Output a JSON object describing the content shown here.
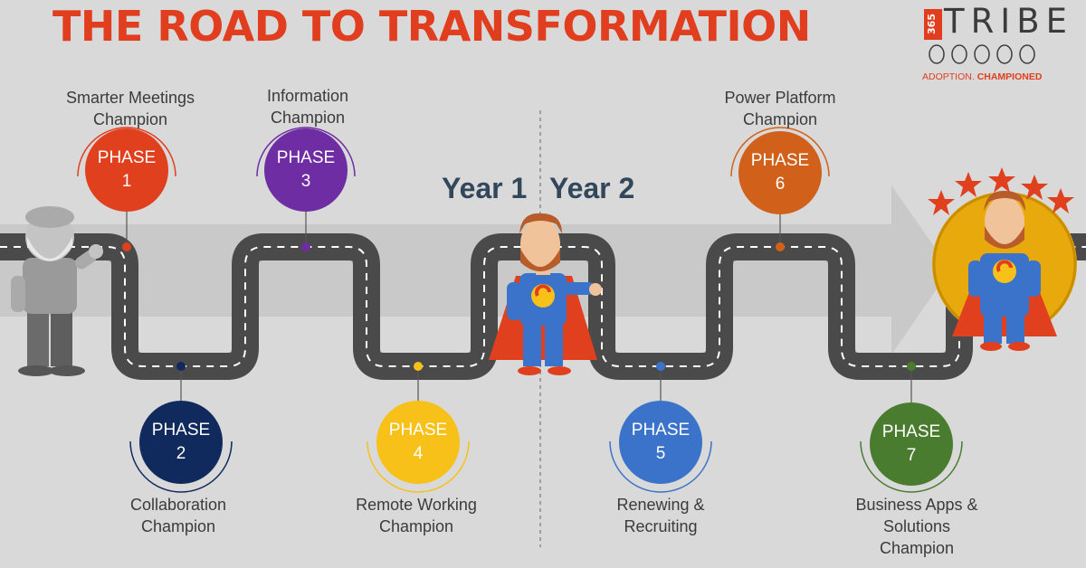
{
  "title": "THE ROAD TO TRANSFORMATION",
  "logo": {
    "number": "365",
    "name": "TRIBE",
    "tagline_a": "ADOPTION.",
    "tagline_b": "CHAMPIONED"
  },
  "years": [
    "Year 1",
    "Year 2"
  ],
  "phases": [
    {
      "label": "PHASE",
      "number": "1",
      "caption_1": "Smarter Meetings",
      "caption_2": "Champion",
      "caption_3": "",
      "color": "#e0401e"
    },
    {
      "label": "PHASE",
      "number": "2",
      "caption_1": "Collaboration",
      "caption_2": "Champion",
      "caption_3": "",
      "color": "#102a5e"
    },
    {
      "label": "PHASE",
      "number": "3",
      "caption_1": "Information",
      "caption_2": "Champion",
      "caption_3": "",
      "color": "#6f2da3"
    },
    {
      "label": "PHASE",
      "number": "4",
      "caption_1": "Remote Working",
      "caption_2": "Champion",
      "caption_3": "",
      "color": "#f7c11a"
    },
    {
      "label": "PHASE",
      "number": "5",
      "caption_1": "Renewing &",
      "caption_2": "Recruiting",
      "caption_3": "",
      "color": "#3a73c9"
    },
    {
      "label": "PHASE",
      "number": "6",
      "caption_1": "Power Platform",
      "caption_2": "Champion",
      "caption_3": "",
      "color": "#d1601a"
    },
    {
      "label": "PHASE",
      "number": "7",
      "caption_1": "Business Apps &",
      "caption_2": "Solutions",
      "caption_3": "Champion",
      "color": "#4a7c2f"
    }
  ]
}
